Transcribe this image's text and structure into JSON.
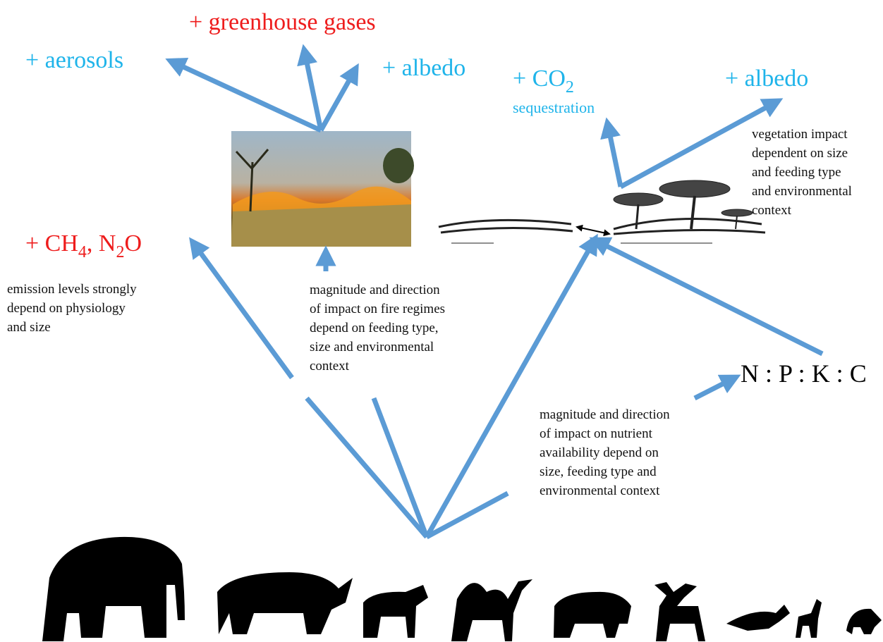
{
  "greenhouse": "+ greenhouse gases",
  "aerosols": "+ aerosols",
  "albedo_fire": "+ albedo",
  "co2": {
    "parts": [
      "+ CO",
      "2"
    ],
    "note": "sequestration"
  },
  "albedo_veg": "+ albedo",
  "vegetation_note": [
    "vegetation impact",
    "dependent on size",
    "and feeding type",
    "and environmental",
    "context"
  ],
  "emissions": {
    "parts": [
      "+ CH",
      "4",
      ", N",
      "2",
      "O"
    ]
  },
  "emission_note": [
    "emission levels strongly",
    "depend on physiology",
    "and size"
  ],
  "fire_note": [
    "magnitude and direction",
    "of impact on fire regimes",
    "depend on feeding type,",
    "size and environmental",
    "context"
  ],
  "nutrients": "N : P : K : C",
  "nutrient_note": [
    "magnitude and direction",
    "of impact on nutrient",
    "availability depend on",
    "size, feeding type and",
    "environmental context"
  ]
}
